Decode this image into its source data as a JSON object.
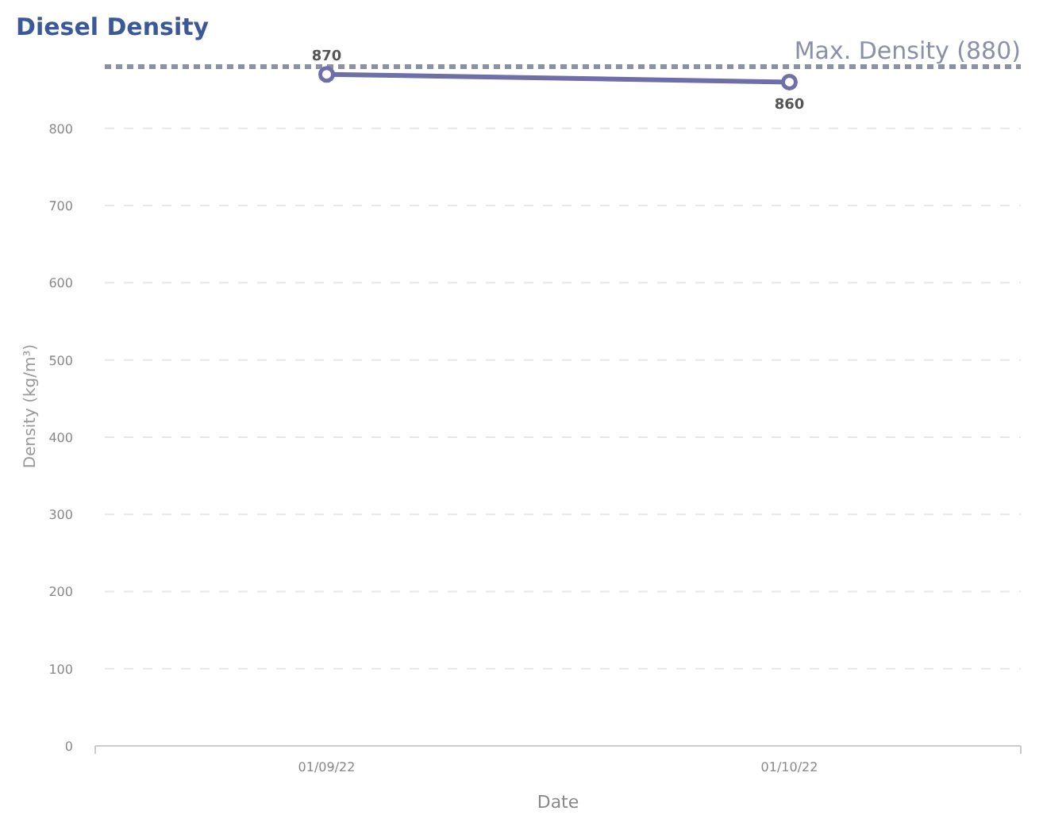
{
  "chart_data": {
    "type": "line",
    "title": "Diesel Density",
    "xlabel": "Date",
    "ylabel": "Density (kg/m³)",
    "categories": [
      "01/09/22",
      "01/10/22"
    ],
    "series": [
      {
        "color": "#6e6ea8",
        "values": [
          870,
          860
        ]
      }
    ],
    "ylim": [
      0,
      880
    ],
    "yticks": [
      0,
      100,
      200,
      300,
      400,
      500,
      600,
      700,
      800
    ],
    "ref_lines": [
      {
        "axis": "y",
        "value": 880,
        "label": "Max. Density (880)",
        "color": "#8a90a8",
        "line_style": "dotted"
      }
    ],
    "grid": "y",
    "marker": "circle",
    "data_labels": true
  }
}
